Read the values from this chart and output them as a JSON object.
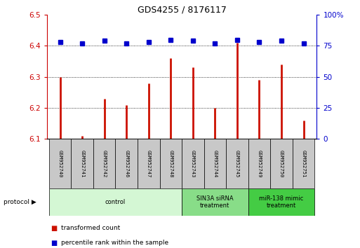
{
  "title": "GDS4255 / 8176117",
  "samples": [
    "GSM952740",
    "GSM952741",
    "GSM952742",
    "GSM952746",
    "GSM952747",
    "GSM952748",
    "GSM952743",
    "GSM952744",
    "GSM952745",
    "GSM952749",
    "GSM952750",
    "GSM952751"
  ],
  "red_values": [
    6.3,
    6.11,
    6.23,
    6.21,
    6.28,
    6.36,
    6.33,
    6.2,
    6.41,
    6.29,
    6.34,
    6.16
  ],
  "blue_values": [
    78,
    77,
    79,
    77,
    78,
    80,
    79,
    77,
    80,
    78,
    79,
    77
  ],
  "ylim_left": [
    6.1,
    6.5
  ],
  "ylim_right": [
    0,
    100
  ],
  "yticks_left": [
    6.1,
    6.2,
    6.3,
    6.4,
    6.5
  ],
  "yticks_right": [
    0,
    25,
    50,
    75,
    100
  ],
  "left_axis_color": "#cc0000",
  "right_axis_color": "#0000cc",
  "bar_color": "#cc1100",
  "dot_color": "#0000cc",
  "sample_box_color": "#c8c8c8",
  "group_ranges": [
    [
      0,
      5,
      "control",
      "#d4f7d4"
    ],
    [
      6,
      8,
      "SIN3A siRNA\ntreatment",
      "#88dd88"
    ],
    [
      9,
      11,
      "miR-138 mimic\ntreatment",
      "#44cc44"
    ]
  ],
  "legend_red": "transformed count",
  "legend_blue": "percentile rank within the sample",
  "protocol_label": "protocol"
}
